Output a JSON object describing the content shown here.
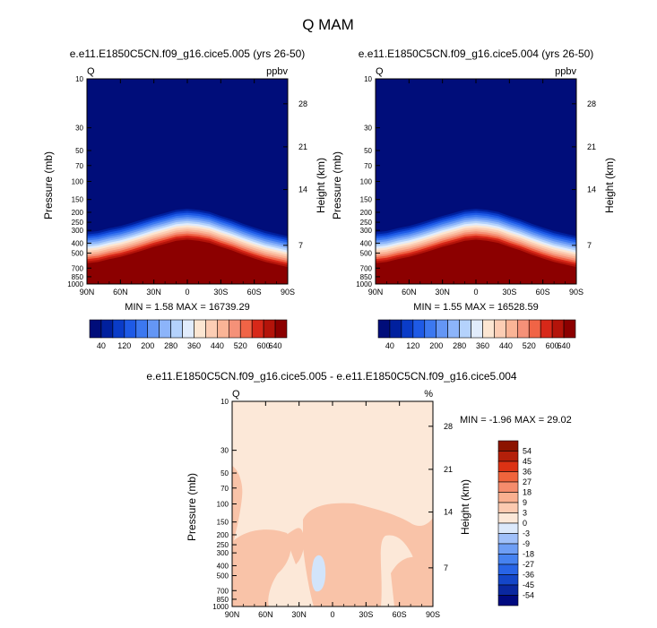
{
  "figure": {
    "title": "Q MAM"
  },
  "chart_data": [
    {
      "type": "heatmap",
      "title": "e.e11.E1850C5CN.f09_g16.cice5.005 (yrs 26-50)",
      "variable": "Q",
      "units": "ppbv",
      "xlabel": "",
      "ylabel": "Pressure (mb)",
      "y2label": "Height (km)",
      "x_tick_labels": [
        "90N",
        "60N",
        "30N",
        "0",
        "30S",
        "60S",
        "90S"
      ],
      "x_tick_values": [
        90,
        60,
        30,
        0,
        -30,
        -60,
        -90
      ],
      "y_tick_labels": [
        "10",
        "30",
        "50",
        "70",
        "100",
        "150",
        "200",
        "250",
        "300",
        "400",
        "500",
        "700",
        "850",
        "1000"
      ],
      "y_tick_values": [
        10,
        30,
        50,
        70,
        100,
        150,
        200,
        250,
        300,
        400,
        500,
        700,
        850,
        1000
      ],
      "y2_tick_labels": [
        "28",
        "21",
        "14",
        "7"
      ],
      "y2_tick_values_pressure": [
        17.5,
        46,
        120,
        420
      ],
      "ylim": [
        10,
        1000
      ],
      "yscale": "log",
      "stats": "MIN =   1.58   MAX = 16739.29",
      "colorbar_orientation": "horizontal",
      "colorbar_labels": [
        "40",
        "120",
        "200",
        "280",
        "360",
        "440",
        "520",
        "600",
        "640"
      ],
      "colorbar_label_values": [
        40,
        120,
        200,
        280,
        360,
        440,
        520,
        600,
        640
      ],
      "levels": [
        40,
        80,
        120,
        160,
        200,
        240,
        280,
        320,
        360,
        400,
        440,
        480,
        520,
        560,
        600,
        640
      ],
      "colors": [
        "#000d7a",
        "#00209e",
        "#0a3cc8",
        "#1e5ae6",
        "#3c78f0",
        "#6496f5",
        "#8cb4fa",
        "#b4d2fc",
        "#e1ecfc",
        "#fce6d2",
        "#fccdb4",
        "#fab496",
        "#f59178",
        "#f06446",
        "#d72819",
        "#b4140a",
        "#8c0000"
      ],
      "tropopause_pressure_profile": {
        "lat": [
          90,
          80,
          70,
          60,
          50,
          40,
          30,
          20,
          10,
          0,
          -10,
          -20,
          -30,
          -40,
          -50,
          -60,
          -70,
          -80,
          -90
        ],
        "p_mb": [
          340,
          330,
          310,
          295,
          275,
          255,
          235,
          220,
          205,
          200,
          205,
          215,
          235,
          255,
          280,
          305,
          330,
          350,
          370
        ]
      }
    },
    {
      "type": "heatmap",
      "title": "e.e11.E1850C5CN.f09_g16.cice5.004 (yrs 26-50)",
      "variable": "Q",
      "units": "ppbv",
      "xlabel": "",
      "ylabel": "Pressure (mb)",
      "y2label": "Height (km)",
      "x_tick_labels": [
        "90N",
        "60N",
        "30N",
        "0",
        "30S",
        "60S",
        "90S"
      ],
      "x_tick_values": [
        90,
        60,
        30,
        0,
        -30,
        -60,
        -90
      ],
      "y_tick_labels": [
        "10",
        "30",
        "50",
        "70",
        "100",
        "150",
        "200",
        "250",
        "300",
        "400",
        "500",
        "700",
        "850",
        "1000"
      ],
      "y_tick_values": [
        10,
        30,
        50,
        70,
        100,
        150,
        200,
        250,
        300,
        400,
        500,
        700,
        850,
        1000
      ],
      "y2_tick_labels": [
        "28",
        "21",
        "14",
        "7"
      ],
      "y2_tick_values_pressure": [
        17.5,
        46,
        120,
        420
      ],
      "ylim": [
        10,
        1000
      ],
      "yscale": "log",
      "stats": "MIN =   1.55   MAX = 16528.59",
      "colorbar_orientation": "horizontal",
      "colorbar_labels": [
        "40",
        "120",
        "200",
        "280",
        "360",
        "440",
        "520",
        "600",
        "640"
      ],
      "colorbar_label_values": [
        40,
        120,
        200,
        280,
        360,
        440,
        520,
        600,
        640
      ],
      "levels": [
        40,
        80,
        120,
        160,
        200,
        240,
        280,
        320,
        360,
        400,
        440,
        480,
        520,
        560,
        600,
        640
      ],
      "colors": [
        "#000d7a",
        "#00209e",
        "#0a3cc8",
        "#1e5ae6",
        "#3c78f0",
        "#6496f5",
        "#8cb4fa",
        "#b4d2fc",
        "#e1ecfc",
        "#fce6d2",
        "#fccdb4",
        "#fab496",
        "#f59178",
        "#f06446",
        "#d72819",
        "#b4140a",
        "#8c0000"
      ],
      "tropopause_pressure_profile": {
        "lat": [
          90,
          80,
          70,
          60,
          50,
          40,
          30,
          20,
          10,
          0,
          -10,
          -20,
          -30,
          -40,
          -50,
          -60,
          -70,
          -80,
          -90
        ],
        "p_mb": [
          340,
          330,
          310,
          295,
          275,
          255,
          235,
          220,
          205,
          200,
          205,
          215,
          235,
          255,
          280,
          305,
          330,
          350,
          370
        ]
      }
    },
    {
      "type": "heatmap",
      "title": "e.e11.E1850C5CN.f09_g16.cice5.005 - e.e11.E1850C5CN.f09_g16.cice5.004",
      "variable": "Q",
      "units": "%",
      "xlabel": "",
      "ylabel": "Pressure (mb)",
      "y2label": "Height (km)",
      "x_tick_labels": [
        "90N",
        "60N",
        "30N",
        "0",
        "30S",
        "60S",
        "90S"
      ],
      "x_tick_values": [
        90,
        60,
        30,
        0,
        -30,
        -60,
        -90
      ],
      "y_tick_labels": [
        "10",
        "30",
        "50",
        "70",
        "100",
        "150",
        "200",
        "250",
        "300",
        "400",
        "500",
        "700",
        "850",
        "1000"
      ],
      "y_tick_values": [
        10,
        30,
        50,
        70,
        100,
        150,
        200,
        250,
        300,
        400,
        500,
        700,
        850,
        1000
      ],
      "y2_tick_labels": [
        "28",
        "21",
        "14",
        "7"
      ],
      "y2_tick_values_pressure": [
        17.5,
        46,
        120,
        420
      ],
      "ylim": [
        10,
        1000
      ],
      "yscale": "log",
      "stats": "MIN =  -1.96   MAX = 29.02",
      "colorbar_orientation": "vertical",
      "colorbar_labels": [
        "54",
        "45",
        "36",
        "27",
        "18",
        "9",
        "3",
        "0",
        "-3",
        "-9",
        "-18",
        "-27",
        "-36",
        "-45",
        "-54"
      ],
      "colorbar_label_values": [
        54,
        45,
        36,
        27,
        18,
        9,
        3,
        0,
        -3,
        -9,
        -18,
        -27,
        -36,
        -45,
        -54
      ],
      "levels": [
        -54,
        -45,
        -36,
        -27,
        -18,
        -9,
        -3,
        0,
        3,
        9,
        18,
        27,
        36,
        45,
        54
      ],
      "colors": [
        "#000a80",
        "#0a28a0",
        "#1446c8",
        "#2864e6",
        "#4682f0",
        "#6e9ef5",
        "#a0c0fa",
        "#dce9fb",
        "#fce8d8",
        "#fccab0",
        "#fab090",
        "#f58c6c",
        "#f0643c",
        "#dc3214",
        "#b4200a",
        "#8c1400"
      ],
      "background_value_range": "0 to 3",
      "regions": [
        {
          "value_range": "3 to 9",
          "note": "positive anomaly patches"
        },
        {
          "value_range": "-3 to 0",
          "note": "small negative patch"
        }
      ]
    }
  ]
}
